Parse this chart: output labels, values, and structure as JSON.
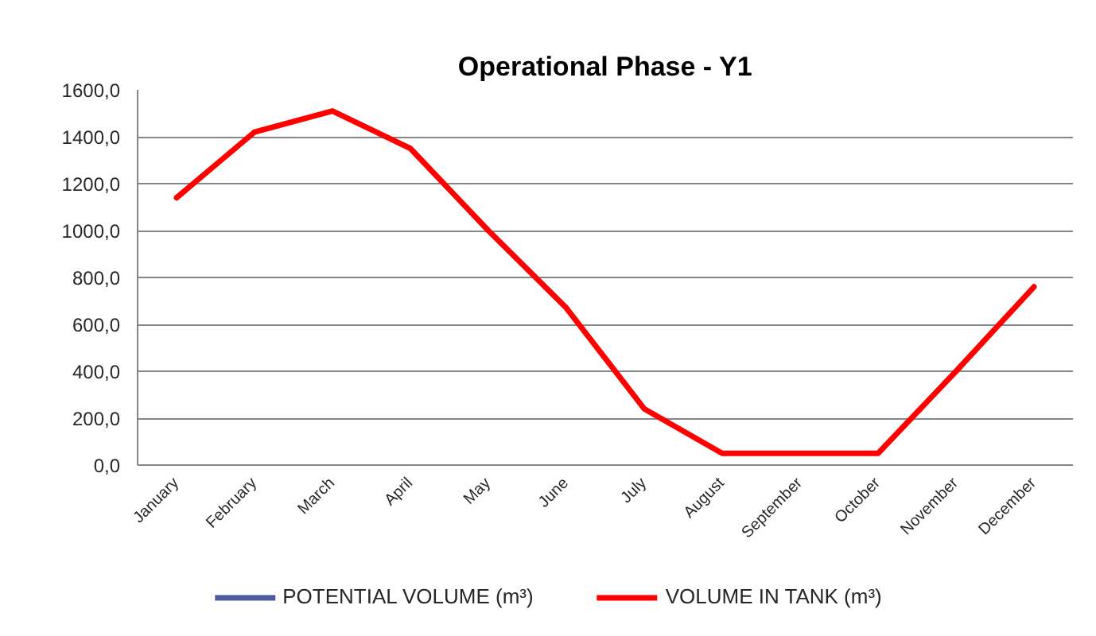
{
  "chart_data": {
    "type": "line",
    "title": "Operational Phase - Y1",
    "categories": [
      "January",
      "February",
      "March",
      "April",
      "May",
      "June",
      "July",
      "August",
      "September",
      "October",
      "November",
      "December"
    ],
    "series": [
      {
        "name": "POTENTIAL VOLUME (m³)",
        "color": "#4f5a9a",
        "values": [
          null,
          null,
          null,
          null,
          null,
          null,
          null,
          null,
          null,
          null,
          null,
          null
        ]
      },
      {
        "name": "VOLUME IN TANK (m³)",
        "color": "#ff0000",
        "values": [
          1140,
          1420,
          1510,
          1350,
          1000,
          670,
          240,
          50,
          50,
          50,
          400,
          760
        ]
      }
    ],
    "ylim": [
      0,
      1600
    ],
    "yticks": [
      {
        "value": 0,
        "label": "0,0"
      },
      {
        "value": 200,
        "label": "200,0"
      },
      {
        "value": 400,
        "label": "400,0"
      },
      {
        "value": 600,
        "label": "600,0"
      },
      {
        "value": 800,
        "label": "800,0"
      },
      {
        "value": 1000,
        "label": "1000,0"
      },
      {
        "value": 1200,
        "label": "1200,0"
      },
      {
        "value": 1400,
        "label": "1400,0"
      },
      {
        "value": 1600,
        "label": "1600,0"
      }
    ],
    "grid": "y",
    "legend": "bottom",
    "marker": "none",
    "line_style": "solid"
  }
}
